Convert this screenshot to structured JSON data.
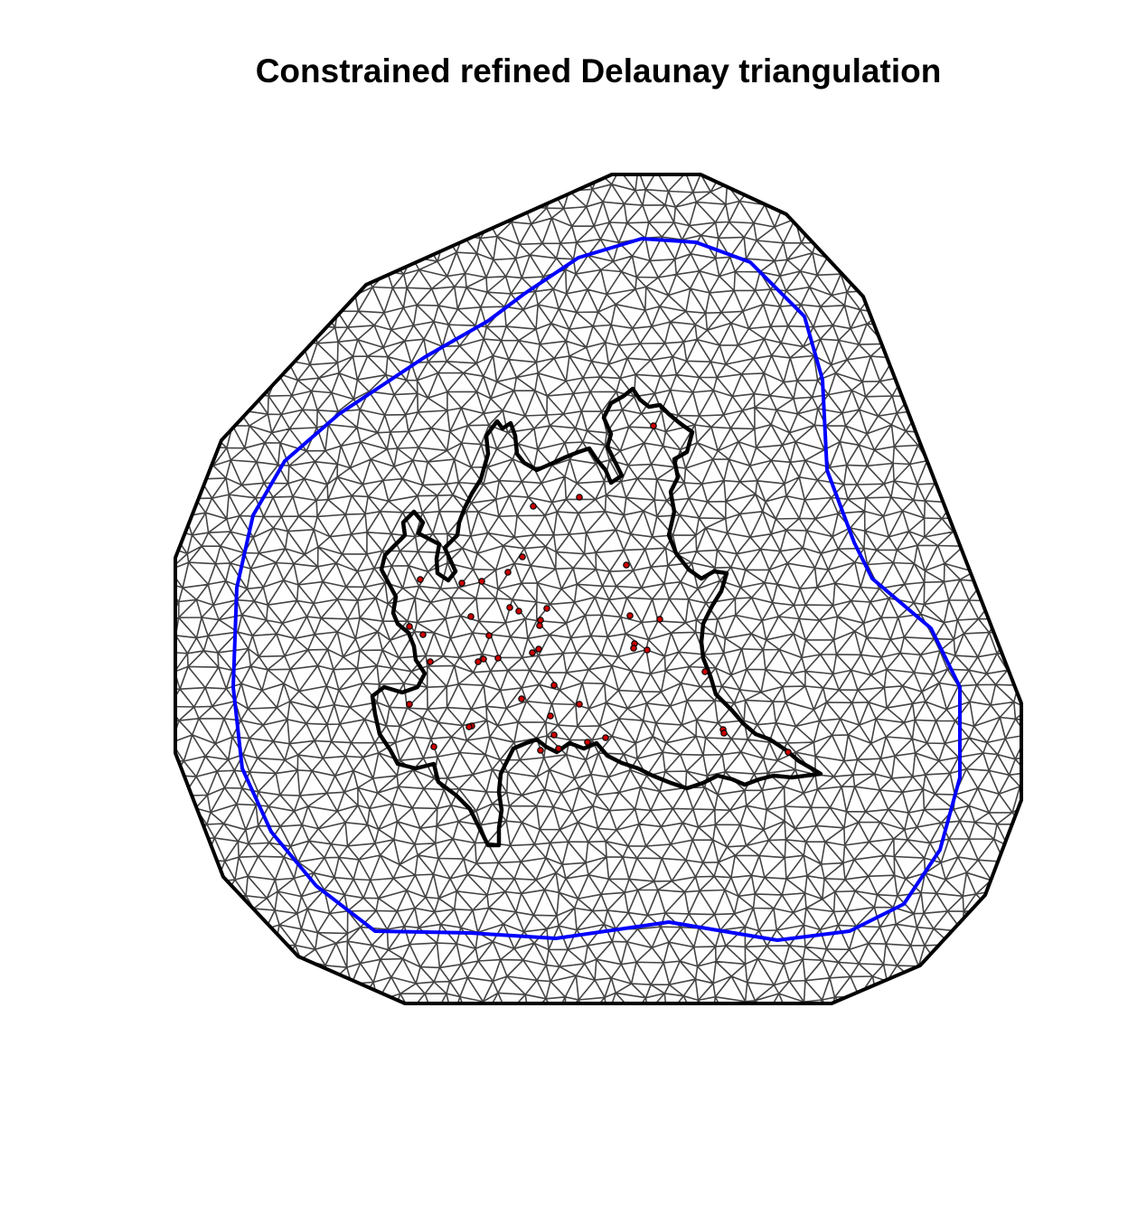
{
  "title": "Constrained refined Delaunay triangulation",
  "colors": {
    "mesh": "#444444",
    "outer_boundary": "#000000",
    "inner_boundary": "#0000ff",
    "region": "#000000",
    "points": "#cc0000"
  }
}
